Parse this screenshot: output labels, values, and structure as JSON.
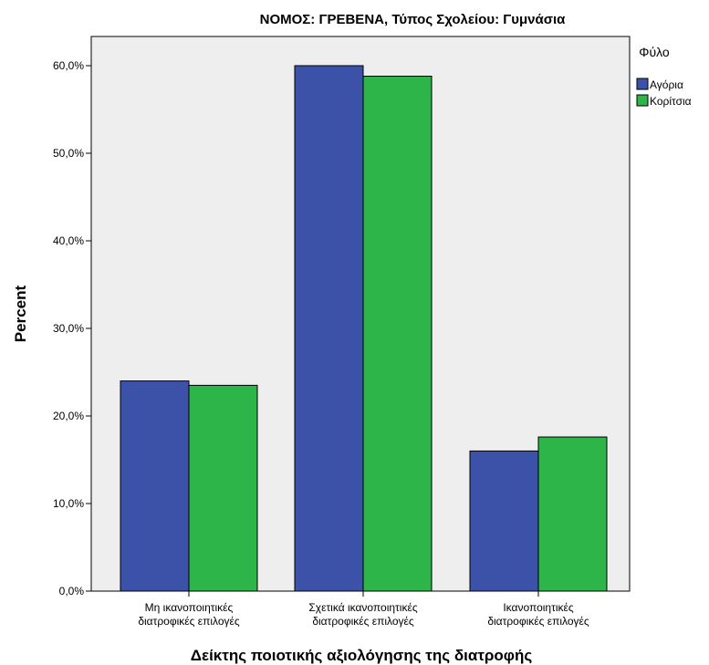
{
  "chart_data": {
    "type": "bar",
    "title": "ΝΟΜΟΣ: ΓΡΕΒΕΝΑ, Τύπος Σχολείου: Γυμνάσια",
    "xlabel": "Δείκτης ποιοτικής αξιολόγησης της διατροφής",
    "ylabel": "Percent",
    "categories": [
      [
        "Μη ικανοποιητικές",
        "διατροφικές επιλογές"
      ],
      [
        "Σχετικά ικανοποιητικές",
        "διατροφικές επιλογές"
      ],
      [
        "Ικανοποιητικές",
        "διατροφικές επιλογές"
      ]
    ],
    "series": [
      {
        "name": "Αγόρια",
        "values": [
          24.0,
          60.0,
          16.0
        ]
      },
      {
        "name": "Κορίτσια",
        "values": [
          23.5,
          58.8,
          17.6
        ]
      }
    ],
    "ylim": [
      0,
      67
    ],
    "yticks": [
      0,
      10,
      20,
      30,
      40,
      50,
      60
    ],
    "ytick_labels": [
      "0,0%",
      "10,0%",
      "20,0%",
      "30,0%",
      "40,0%",
      "50,0%",
      "60,0%"
    ],
    "legend_title": "Φύλο",
    "legend_position": "top-right",
    "grid": false,
    "colors": {
      "series": [
        "#3c51a8",
        "#2db54a"
      ],
      "plot_background": "#eeeeee",
      "outline": "#000000"
    }
  }
}
